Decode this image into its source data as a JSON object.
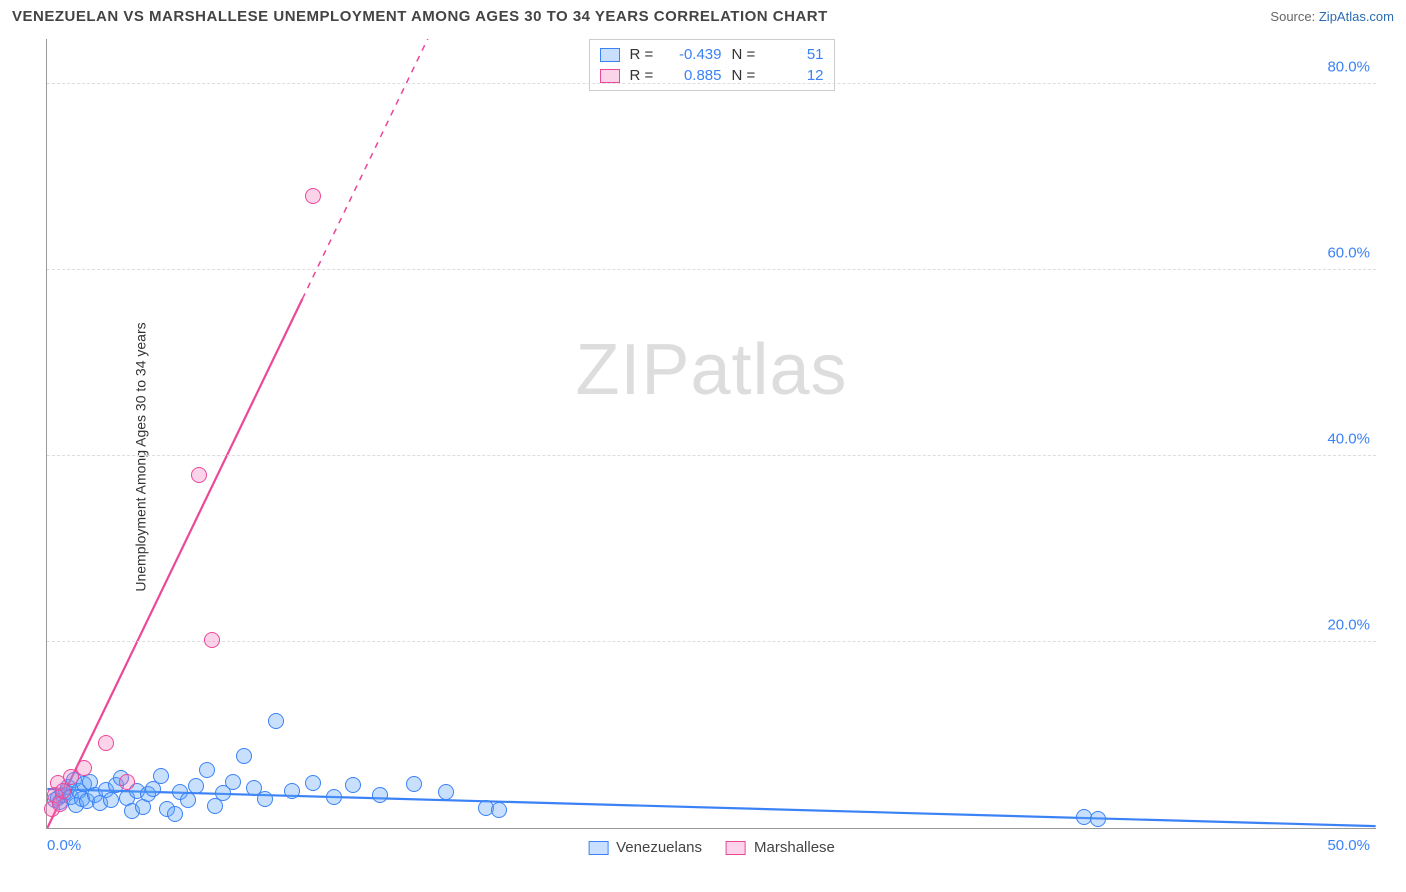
{
  "title": "VENEZUELAN VS MARSHALLESE UNEMPLOYMENT AMONG AGES 30 TO 34 YEARS CORRELATION CHART",
  "source_label": "Source:",
  "source_name": "ZipAtlas.com",
  "y_axis_label": "Unemployment Among Ages 30 to 34 years",
  "watermark": {
    "bold": "ZIP",
    "light": "atlas"
  },
  "chart": {
    "type": "scatter",
    "background_color": "#ffffff",
    "grid_color": "#dddddd",
    "axis_color": "#999999",
    "xlim": [
      0,
      50
    ],
    "ylim": [
      0,
      85
    ],
    "grid_y_values": [
      20,
      40,
      60,
      80
    ],
    "x_ticks": [
      {
        "value": 0,
        "label": "0.0%",
        "color": "#3b82f6"
      },
      {
        "value": 50,
        "label": "50.0%",
        "color": "#3b82f6"
      }
    ],
    "y_ticks": [
      {
        "value": 20,
        "label": "20.0%",
        "color": "#3b82f6"
      },
      {
        "value": 40,
        "label": "40.0%",
        "color": "#3b82f6"
      },
      {
        "value": 60,
        "label": "60.0%",
        "color": "#3b82f6"
      },
      {
        "value": 80,
        "label": "80.0%",
        "color": "#3b82f6"
      }
    ],
    "series": [
      {
        "name": "Venezuelans",
        "color_fill": "rgba(96,165,250,0.35)",
        "color_stroke": "#3b82f6",
        "marker_radius": 8,
        "trend": {
          "x1": 0,
          "y1": 4.2,
          "x2": 50,
          "y2": 0.2,
          "width": 2.2,
          "dash": "none"
        },
        "correlation": {
          "R": "-0.439",
          "N": "51",
          "value_color": "#3b82f6"
        },
        "points": [
          [
            0.3,
            3.0
          ],
          [
            0.4,
            3.2
          ],
          [
            0.5,
            2.8
          ],
          [
            0.6,
            3.5
          ],
          [
            0.7,
            3.9
          ],
          [
            0.8,
            4.4
          ],
          [
            0.9,
            3.3
          ],
          [
            1.0,
            5.2
          ],
          [
            1.1,
            2.5
          ],
          [
            1.2,
            4.0
          ],
          [
            1.3,
            3.1
          ],
          [
            1.4,
            4.7
          ],
          [
            1.5,
            2.9
          ],
          [
            1.6,
            5.0
          ],
          [
            1.8,
            3.6
          ],
          [
            2.0,
            2.7
          ],
          [
            2.2,
            4.1
          ],
          [
            2.4,
            3.0
          ],
          [
            2.6,
            4.6
          ],
          [
            2.8,
            5.4
          ],
          [
            3.0,
            3.2
          ],
          [
            3.2,
            1.8
          ],
          [
            3.4,
            4.0
          ],
          [
            3.6,
            2.3
          ],
          [
            3.8,
            3.7
          ],
          [
            4.0,
            4.2
          ],
          [
            4.3,
            5.6
          ],
          [
            4.5,
            2.0
          ],
          [
            4.8,
            1.5
          ],
          [
            5.0,
            3.9
          ],
          [
            5.3,
            3.0
          ],
          [
            5.6,
            4.5
          ],
          [
            6.0,
            6.2
          ],
          [
            6.3,
            2.4
          ],
          [
            6.6,
            3.8
          ],
          [
            7.0,
            5.0
          ],
          [
            7.4,
            7.8
          ],
          [
            7.8,
            4.3
          ],
          [
            8.2,
            3.1
          ],
          [
            8.6,
            11.5
          ],
          [
            9.2,
            4.0
          ],
          [
            10.0,
            4.8
          ],
          [
            10.8,
            3.3
          ],
          [
            11.5,
            4.6
          ],
          [
            12.5,
            3.5
          ],
          [
            13.8,
            4.7
          ],
          [
            15.0,
            3.9
          ],
          [
            16.5,
            2.2
          ],
          [
            17.0,
            1.9
          ],
          [
            39.0,
            1.2
          ],
          [
            39.5,
            1.0
          ]
        ]
      },
      {
        "name": "Marshallese",
        "color_fill": "rgba(244,114,182,0.30)",
        "color_stroke": "#ec4899",
        "marker_radius": 8,
        "trend": {
          "x1": 0,
          "y1": 0,
          "x2": 16,
          "y2": 95,
          "width": 2.2,
          "dash": "none",
          "dash_after_y": 57
        },
        "correlation": {
          "R": "0.885",
          "N": "12",
          "value_color": "#3b82f6"
        },
        "points": [
          [
            0.2,
            2.0
          ],
          [
            0.3,
            3.5
          ],
          [
            0.4,
            4.8
          ],
          [
            0.5,
            2.6
          ],
          [
            0.6,
            4.0
          ],
          [
            0.9,
            5.5
          ],
          [
            1.4,
            6.5
          ],
          [
            2.2,
            9.2
          ],
          [
            3.0,
            5.0
          ],
          [
            6.2,
            20.2
          ],
          [
            5.7,
            38.0
          ],
          [
            10.0,
            68.0
          ]
        ]
      }
    ],
    "legend_top_labels": {
      "R": "R =",
      "N": "N ="
    },
    "legend_bottom": [
      {
        "label": "Venezuelans",
        "fill": "rgba(96,165,250,0.35)",
        "stroke": "#3b82f6"
      },
      {
        "label": "Marshallese",
        "fill": "rgba(244,114,182,0.30)",
        "stroke": "#ec4899"
      }
    ]
  }
}
